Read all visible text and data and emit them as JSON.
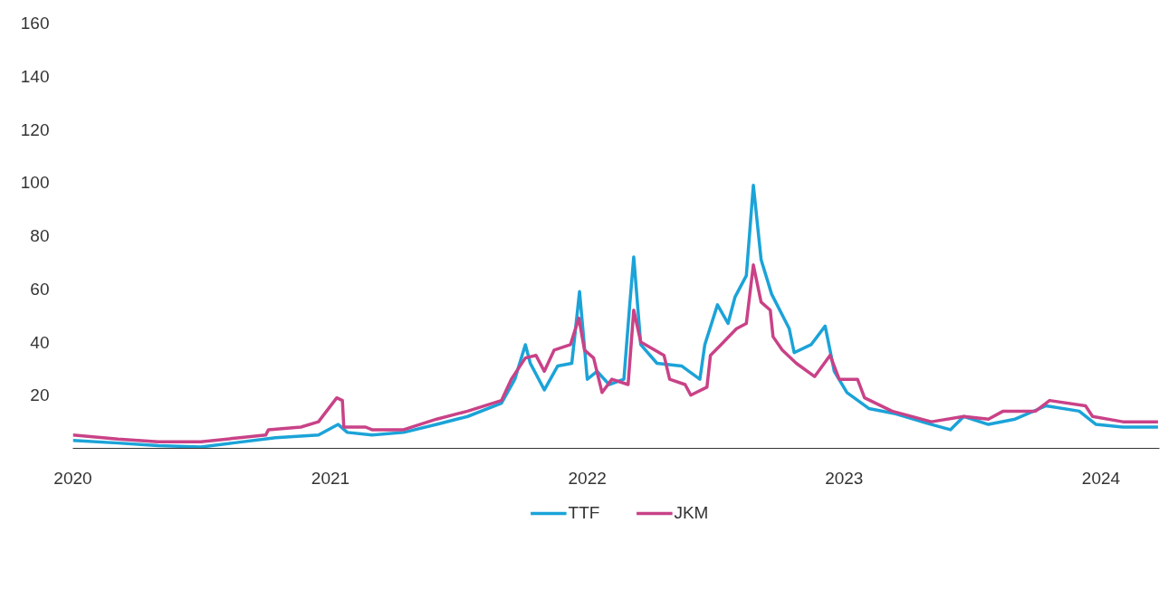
{
  "chart_data": {
    "type": "line",
    "legend": "bottom",
    "grid": false,
    "line_style": "solid",
    "marker": "none",
    "xlim": [
      "2020-01-01",
      "2024-03-24"
    ],
    "xticks": [
      {
        "value": "2020-01-01",
        "label": "2020"
      },
      {
        "value": "2021-01-01",
        "label": "2021"
      },
      {
        "value": "2022-01-01",
        "label": "2022"
      },
      {
        "value": "2023-01-01",
        "label": "2023"
      },
      {
        "value": "2024-01-01",
        "label": "2024"
      }
    ],
    "ylim": [
      0,
      160
    ],
    "yticks": [
      20,
      40,
      60,
      80,
      100,
      120,
      140,
      160
    ],
    "series": [
      {
        "name": "TTF",
        "color": "#1ba3d8",
        "x": [
          "2020-01-01",
          "2020-03-05",
          "2020-05-01",
          "2020-07-01",
          "2020-08-15",
          "2020-10-15",
          "2020-12-15",
          "2021-01-12",
          "2021-01-25",
          "2021-03-01",
          "2021-04-15",
          "2021-06-01",
          "2021-07-15",
          "2021-09-01",
          "2021-09-20",
          "2021-10-05",
          "2021-10-12",
          "2021-11-01",
          "2021-11-20",
          "2021-12-10",
          "2021-12-21",
          "2022-01-01",
          "2022-01-15",
          "2022-02-01",
          "2022-02-22",
          "2022-03-02",
          "2022-03-08",
          "2022-03-18",
          "2022-04-10",
          "2022-05-15",
          "2022-06-10",
          "2022-06-17",
          "2022-07-05",
          "2022-07-20",
          "2022-07-30",
          "2022-08-15",
          "2022-08-25",
          "2022-09-05",
          "2022-09-20",
          "2022-10-15",
          "2022-10-22",
          "2022-11-15",
          "2022-12-05",
          "2022-12-18",
          "2023-01-05",
          "2023-02-05",
          "2023-03-15",
          "2023-05-05",
          "2023-06-01",
          "2023-06-20",
          "2023-07-25",
          "2023-09-01",
          "2023-10-15",
          "2023-12-01",
          "2023-12-25",
          "2024-02-01",
          "2024-03-22"
        ],
        "values": [
          3,
          2,
          1,
          0.5,
          2,
          4,
          5,
          9,
          6,
          5,
          6,
          9,
          12,
          17,
          26,
          39,
          32,
          22,
          31,
          32,
          59,
          26,
          29,
          24,
          26,
          53,
          72,
          39,
          32,
          31,
          26,
          39,
          54,
          47,
          57,
          65,
          99,
          71,
          58,
          45,
          36,
          39,
          46,
          29,
          21,
          15,
          13,
          9,
          7,
          12,
          9,
          11,
          16,
          14,
          9,
          8,
          8
        ]
      },
      {
        "name": "JKM",
        "color": "#c94287",
        "x": [
          "2020-01-01",
          "2020-03-05",
          "2020-05-01",
          "2020-07-01",
          "2020-08-25",
          "2020-10-01",
          "2020-10-05",
          "2020-11-20",
          "2020-12-15",
          "2021-01-10",
          "2021-01-18",
          "2021-01-20",
          "2021-02-20",
          "2021-03-01",
          "2021-04-15",
          "2021-06-01",
          "2021-07-15",
          "2021-09-01",
          "2021-09-15",
          "2021-10-05",
          "2021-10-20",
          "2021-11-01",
          "2021-11-15",
          "2021-12-08",
          "2021-12-20",
          "2021-12-28",
          "2022-01-10",
          "2022-01-22",
          "2022-02-05",
          "2022-02-28",
          "2022-03-08",
          "2022-03-18",
          "2022-04-20",
          "2022-04-28",
          "2022-05-20",
          "2022-05-28",
          "2022-06-20",
          "2022-06-25",
          "2022-07-10",
          "2022-08-01",
          "2022-08-15",
          "2022-08-25",
          "2022-09-05",
          "2022-09-18",
          "2022-09-22",
          "2022-10-05",
          "2022-10-25",
          "2022-11-20",
          "2022-12-12",
          "2022-12-25",
          "2023-01-20",
          "2023-01-30",
          "2023-03-10",
          "2023-05-05",
          "2023-06-20",
          "2023-07-25",
          "2023-08-15",
          "2023-09-30",
          "2023-10-20",
          "2023-12-10",
          "2023-12-20",
          "2024-02-01",
          "2024-03-22"
        ],
        "values": [
          5,
          3.5,
          2.5,
          2.5,
          4,
          5,
          7,
          8,
          10,
          19,
          18,
          8,
          8,
          7,
          7,
          11,
          14,
          18,
          26,
          34,
          35,
          29,
          37,
          39,
          49,
          37,
          34,
          21,
          26,
          24,
          52,
          40,
          35,
          26,
          24,
          20,
          23,
          35,
          39,
          45,
          47,
          69,
          55,
          52,
          42,
          37,
          32,
          27,
          35,
          26,
          26,
          19,
          14,
          10,
          12,
          11,
          14,
          14,
          18,
          16,
          12,
          10,
          10
        ]
      }
    ]
  }
}
